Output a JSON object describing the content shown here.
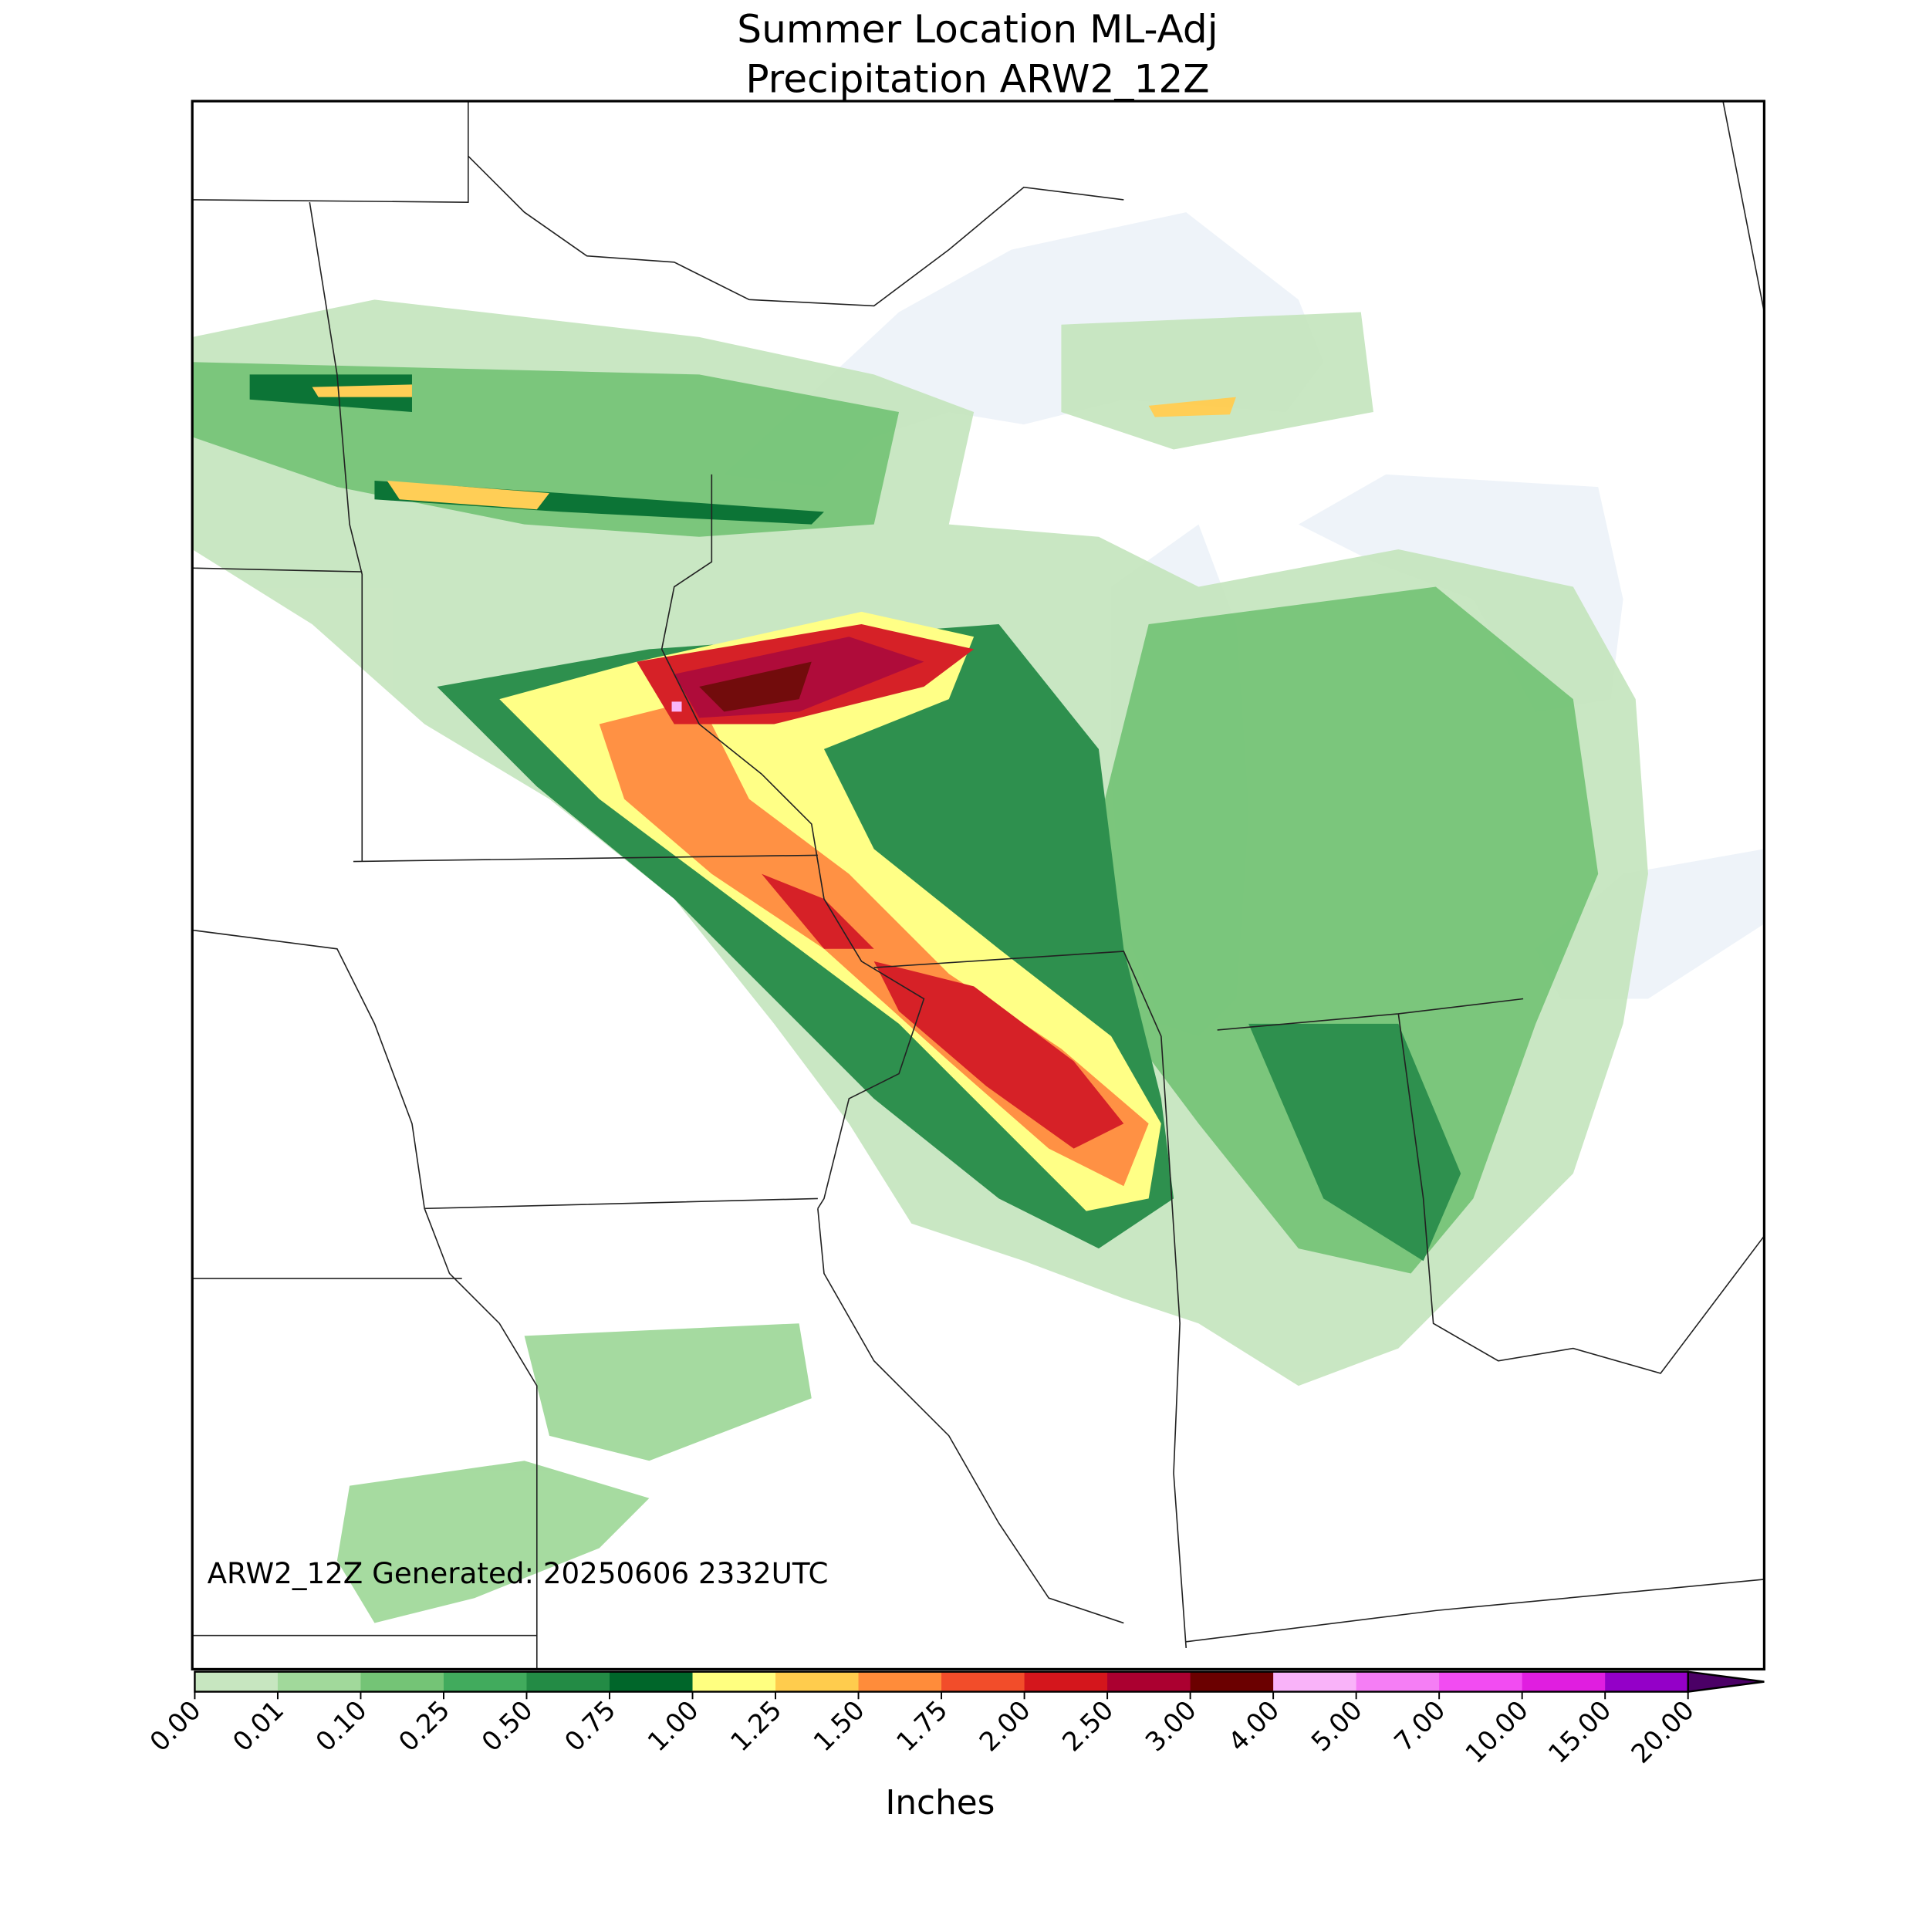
{
  "header": {
    "title": "Summer Location ML-Adj",
    "subtitle": "Precipitation ARW2_12Z"
  },
  "map": {
    "annotation": "ARW2_12Z Generated: 20250606 2332UTC"
  },
  "colorbar": {
    "label": "Inches",
    "ticks": [
      {
        "value": 0,
        "label": "0.00"
      },
      {
        "value": 0.01,
        "label": "0.01"
      },
      {
        "value": 0.1,
        "label": "0.10"
      },
      {
        "value": 0.25,
        "label": "0.25"
      },
      {
        "value": 0.5,
        "label": "0.50"
      },
      {
        "value": 0.75,
        "label": "0.75"
      },
      {
        "value": 1,
        "label": "1.00"
      },
      {
        "value": 1.25,
        "label": "1.25"
      },
      {
        "value": 1.5,
        "label": "1.50"
      },
      {
        "value": 1.75,
        "label": "1.75"
      },
      {
        "value": 2,
        "label": "2.00"
      },
      {
        "value": 2.5,
        "label": "2.50"
      },
      {
        "value": 3,
        "label": "3.00"
      },
      {
        "value": 4,
        "label": "4.00"
      },
      {
        "value": 5,
        "label": "5.00"
      },
      {
        "value": 7,
        "label": "7.00"
      },
      {
        "value": 10,
        "label": "10.00"
      },
      {
        "value": 15,
        "label": "15.00"
      },
      {
        "value": 20,
        "label": "20.00"
      }
    ],
    "colors": [
      "#ffffff",
      "#c7e6c0",
      "#a1d99b",
      "#74c476",
      "#41ab5d",
      "#238b45",
      "#00662a",
      "#ffff80",
      "#ffcc4d",
      "#ff8c3a",
      "#f24d2a",
      "#d4161c",
      "#ab0030",
      "#6b0000",
      "#f9b3f9",
      "#f57ef5",
      "#f24cf2",
      "#e01ee0",
      "#9400c8"
    ],
    "extend_color": "#4b0066"
  }
}
